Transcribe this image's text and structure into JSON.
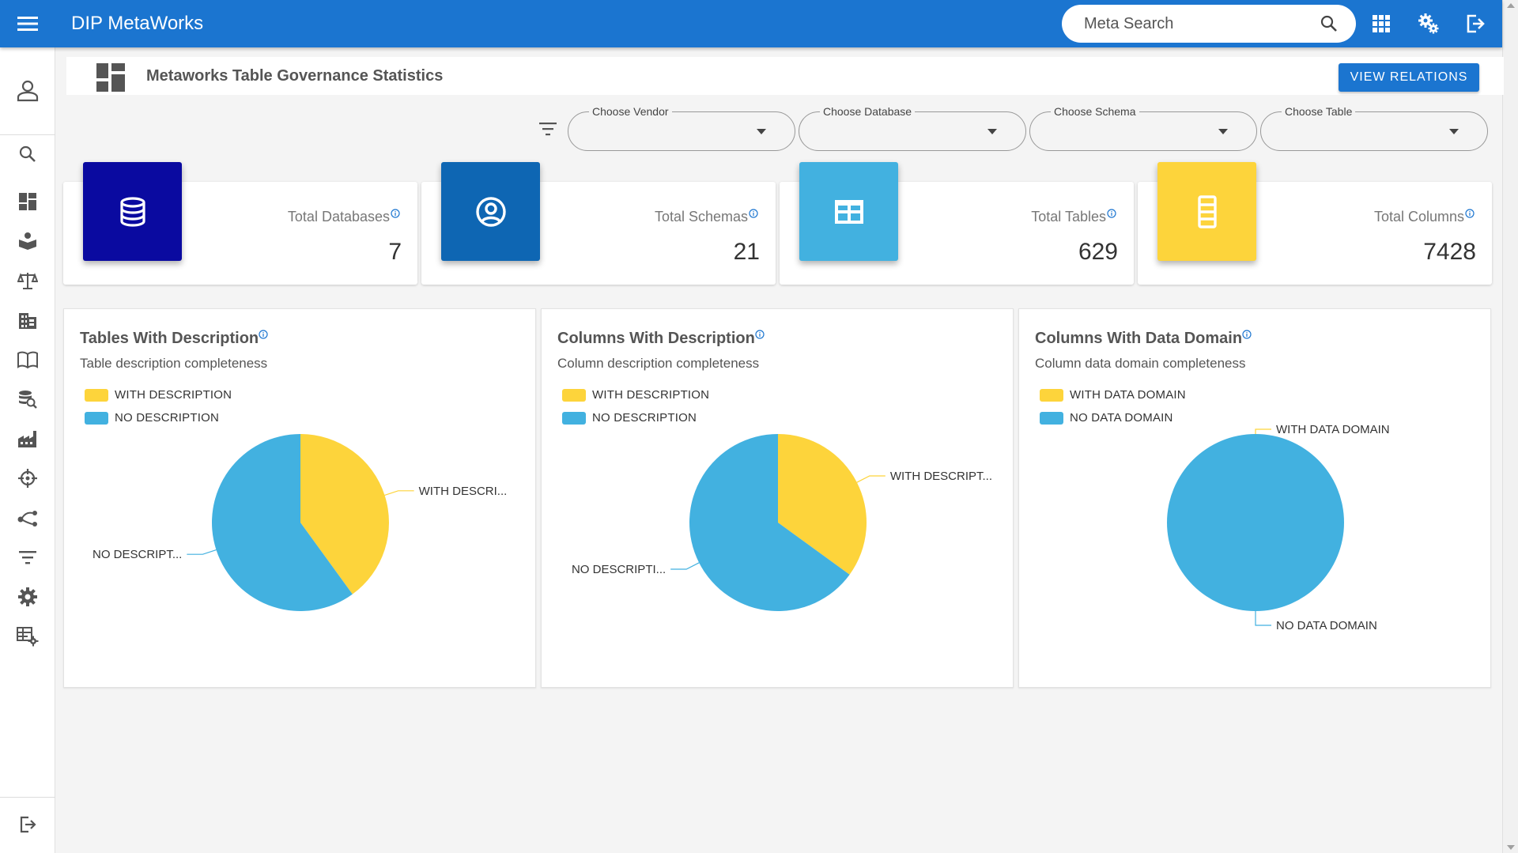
{
  "app": {
    "title": "DIP MetaWorks"
  },
  "search": {
    "placeholder": "Meta Search"
  },
  "header": {
    "title": "Metaworks Table Governance Statistics",
    "view_relations_label": "VIEW RELATIONS"
  },
  "filters": [
    {
      "label": "Choose Vendor",
      "value": ""
    },
    {
      "label": "Choose Database",
      "value": ""
    },
    {
      "label": "Choose Schema",
      "value": ""
    },
    {
      "label": "Choose Table",
      "value": ""
    }
  ],
  "stats": [
    {
      "label": "Total Databases",
      "value": "7",
      "color": "#0a0aa0",
      "icon": "database-icon"
    },
    {
      "label": "Total Schemas",
      "value": "21",
      "color": "#0e66b3",
      "icon": "account-circle-icon"
    },
    {
      "label": "Total Tables",
      "value": "629",
      "color": "#42b1e0",
      "icon": "table-icon"
    },
    {
      "label": "Total Columns",
      "value": "7428",
      "color": "#fdd43b",
      "icon": "column-icon"
    }
  ],
  "colors": {
    "primary": "#1b75d0",
    "yellow": "#fdd43b",
    "blue": "#42b1e0"
  },
  "sidebar": {
    "icons": [
      "user-icon",
      "search-icon",
      "dashboard-icon",
      "catalog-icon",
      "governance-icon",
      "business-icon",
      "glossary-icon",
      "data-search-icon",
      "factory-icon",
      "crosshair-icon",
      "lineage-icon",
      "filter-icon",
      "settings-icon",
      "table-settings-icon",
      "logout-icon"
    ]
  },
  "chart_data": [
    {
      "type": "pie",
      "title": "Tables With Description",
      "subtitle": "Table description completeness",
      "legend": [
        "WITH DESCRIPTION",
        "NO DESCRIPTION"
      ],
      "slice_labels": [
        "WITH DESCRI...",
        "NO DESCRIPT..."
      ],
      "values": [
        40,
        60
      ],
      "colors": [
        "#fdd43b",
        "#42b1e0"
      ],
      "legend_position": "top-left"
    },
    {
      "type": "pie",
      "title": "Columns With Description",
      "subtitle": "Column description completeness",
      "legend": [
        "WITH DESCRIPTION",
        "NO DESCRIPTION"
      ],
      "slice_labels": [
        "WITH DESCRIPT...",
        "NO DESCRIPTI..."
      ],
      "values": [
        35,
        65
      ],
      "colors": [
        "#fdd43b",
        "#42b1e0"
      ],
      "legend_position": "top-left"
    },
    {
      "type": "pie",
      "title": "Columns With Data Domain",
      "subtitle": "Column data domain completeness",
      "legend": [
        "WITH DATA DOMAIN",
        "NO DATA DOMAIN"
      ],
      "slice_labels": [
        "WITH DATA DOMAIN",
        "NO DATA DOMAIN"
      ],
      "values": [
        0,
        100
      ],
      "colors": [
        "#fdd43b",
        "#42b1e0"
      ],
      "legend_position": "top-left"
    }
  ]
}
